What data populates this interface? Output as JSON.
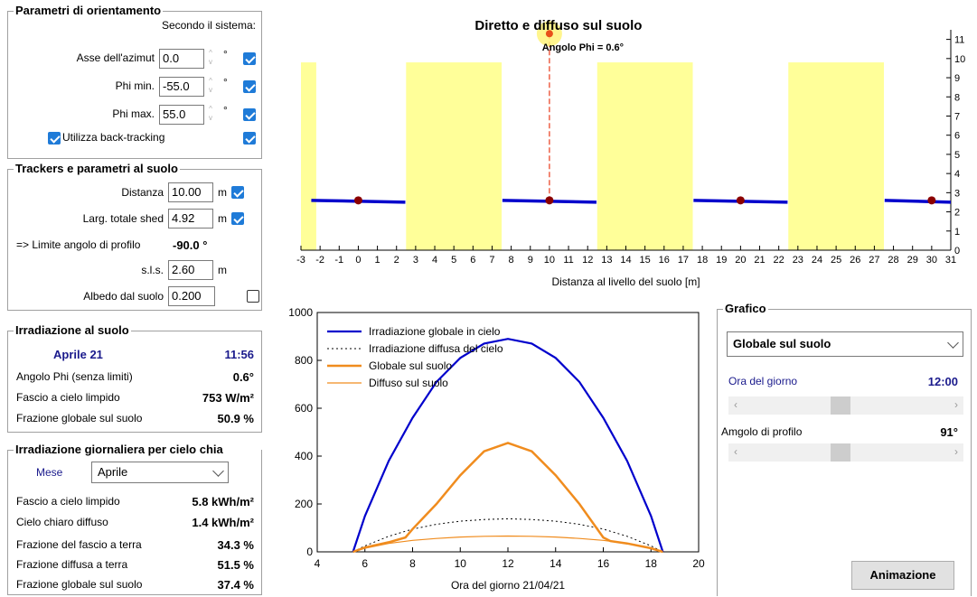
{
  "orient": {
    "title": "Parametri di orientamento",
    "subtitle": "Secondo il sistema:",
    "rows": [
      {
        "label": "Asse dell'azimut",
        "value": "0.0",
        "unit": "°"
      },
      {
        "label": "Phi min.",
        "value": "-55.0",
        "unit": "°"
      },
      {
        "label": "Phi max.",
        "value": "55.0",
        "unit": "°"
      }
    ],
    "backtrack_label": "Utilizza back-tracking"
  },
  "trackers": {
    "title": "Trackers e parametri al suolo",
    "distanza_label": "Distanza",
    "distanza_value": "10.00",
    "distanza_unit": "m",
    "larg_label": "Larg. totale shed",
    "larg_value": "4.92",
    "larg_unit": "m",
    "limite_label": "=> Limite angolo di profilo",
    "limite_value": "-90.0 °",
    "sls_label": "s.l.s.",
    "sls_value": "2.60",
    "sls_unit": "m",
    "albedo_label": "Albedo dal suolo",
    "albedo_value": "0.200"
  },
  "irr": {
    "title": "Irradiazione al suolo",
    "date": "Aprile 21",
    "time": "11:56",
    "rows": [
      {
        "label": "Angolo Phi (senza limiti)",
        "value": "0.6°"
      },
      {
        "label": "Fascio a cielo limpido",
        "value": "753 W/m²"
      },
      {
        "label": "Frazione globale sul suolo",
        "value": "50.9 %"
      }
    ]
  },
  "daily": {
    "title": "Irradiazione giornaliera per cielo chia",
    "mese_label": "Mese",
    "mese_value": "Aprile",
    "rows": [
      {
        "label": "Fascio a cielo limpido",
        "value": "5.8 kWh/m²"
      },
      {
        "label": "Cielo chiaro diffuso",
        "value": "1.4 kWh/m²"
      },
      {
        "label": "Frazione del fascio a terra",
        "value": "34.3 %"
      },
      {
        "label": "Frazione diffusa a terra",
        "value": "51.5 %"
      },
      {
        "label": "Frazione globale sul suolo",
        "value": "37.4 %"
      }
    ]
  },
  "grafico": {
    "title": "Grafico",
    "select_value": "Globale sul suolo",
    "ora_label": "Ora del giorno",
    "ora_value": "12:00",
    "ora_slider_fraction": 0.42,
    "profilo_label": "Amgolo di profilo",
    "profilo_value": "91°",
    "profilo_slider_fraction": 0.42,
    "button_label": "Animazione"
  },
  "colors": {
    "accent": "#1f7bd8",
    "navy": "#1a1a8c",
    "shed": "#ffff99",
    "blue_line": "#0000cc",
    "orange": "#f08c1e"
  },
  "chart_data": [
    {
      "type": "area",
      "title": "Diretto e diffuso sul suolo",
      "annotation": "Angolo Phi = 0.6°",
      "xlabel": "Distanza al livello del suolo [m]",
      "ylabel": "",
      "xlim": [
        -3,
        31
      ],
      "ylim": [
        0,
        11.5
      ],
      "xticks": [
        -3,
        -2,
        -1,
        0,
        1,
        2,
        3,
        4,
        5,
        6,
        7,
        8,
        9,
        10,
        11,
        12,
        13,
        14,
        15,
        16,
        17,
        18,
        19,
        20,
        21,
        22,
        23,
        24,
        25,
        26,
        27,
        28,
        29,
        30,
        31
      ],
      "yticks": [
        0,
        1,
        2,
        3,
        4,
        5,
        6,
        7,
        8,
        9,
        10,
        11
      ],
      "lit_bands": [
        [
          -3,
          -2.2
        ],
        [
          2.5,
          7.5
        ],
        [
          12.5,
          17.5
        ],
        [
          22.5,
          27.5
        ]
      ],
      "band_top": 9.8,
      "trackers": [
        0,
        10,
        20,
        30
      ],
      "tracker_half_width": 2.46,
      "tracker_height": 2.6,
      "sun": {
        "x": 10,
        "y": 11.3
      }
    },
    {
      "type": "line",
      "xlabel": "Ora del giorno 21/04/21",
      "ylabel": "",
      "xlim": [
        4,
        20
      ],
      "ylim": [
        0,
        1000
      ],
      "xticks": [
        4,
        6,
        8,
        10,
        12,
        14,
        16,
        18,
        20
      ],
      "yticks": [
        0,
        200,
        400,
        600,
        800,
        1000
      ],
      "legend": "top-left",
      "series": [
        {
          "name": "Irradiazione globale in cielo",
          "style": "solid-blue",
          "x": [
            5.5,
            6,
            7,
            8,
            9,
            10,
            11,
            12,
            13,
            14,
            15,
            16,
            17,
            18,
            18.5
          ],
          "y": [
            0,
            150,
            380,
            560,
            710,
            810,
            870,
            890,
            870,
            810,
            710,
            560,
            380,
            150,
            0
          ]
        },
        {
          "name": "Irradiazione diffusa del cielo",
          "style": "dotted-black",
          "x": [
            5.5,
            6,
            7,
            8,
            9,
            10,
            11,
            12,
            13,
            14,
            15,
            16,
            17,
            18,
            18.5
          ],
          "y": [
            0,
            25,
            65,
            95,
            115,
            128,
            135,
            138,
            135,
            128,
            115,
            95,
            65,
            25,
            0
          ]
        },
        {
          "name": "Globale sul suolo",
          "style": "thick-orange",
          "x": [
            5.5,
            6,
            7,
            7.7,
            8,
            9,
            10,
            11,
            12,
            13,
            14,
            15,
            16,
            16.3,
            17,
            18,
            18.5
          ],
          "y": [
            0,
            18,
            40,
            60,
            95,
            200,
            320,
            420,
            455,
            420,
            320,
            200,
            60,
            45,
            35,
            15,
            0
          ]
        },
        {
          "name": "Diffuso sul suolo",
          "style": "thin-orange",
          "x": [
            5.5,
            6,
            7,
            8,
            9,
            10,
            11,
            12,
            13,
            14,
            15,
            16,
            17,
            18,
            18.5
          ],
          "y": [
            0,
            15,
            35,
            48,
            56,
            62,
            65,
            66,
            65,
            62,
            56,
            48,
            35,
            15,
            0
          ]
        }
      ]
    }
  ]
}
